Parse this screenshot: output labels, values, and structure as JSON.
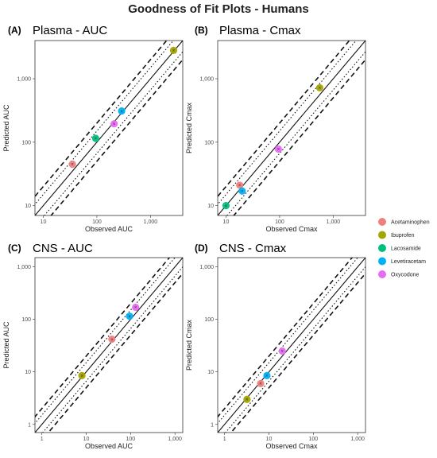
{
  "figure_title": "Goodness of Fit Plots - Humans",
  "colors": {
    "Acetaminophen": "#F08080",
    "Ibuprofen": "#A3A500",
    "Lacosamide": "#00BF7D",
    "Levetiracetam": "#00B0F6",
    "Oxycodone": "#E76BF3"
  },
  "legend": [
    "Acetaminophen",
    "Ibuprofen",
    "Lacosamide",
    "Levetiracetam",
    "Oxycodone"
  ],
  "chart_data": [
    {
      "type": "scatter",
      "letter": "(A)",
      "title": "Plasma - AUC",
      "xlabel": "Observed AUC",
      "ylabel": "Predicted AUC",
      "scale": "log10",
      "xlim": [
        7,
        4000
      ],
      "ylim": [
        7,
        4000
      ],
      "ticks": [
        10,
        100,
        1000
      ],
      "tick_labels": [
        "10",
        "100",
        "1,000"
      ],
      "reference_lines": [
        "unity",
        "1.5-fold",
        "2-fold"
      ],
      "points": [
        {
          "drug": "Acetaminophen",
          "x": 35,
          "y": 45
        },
        {
          "drug": "Lacosamide",
          "x": 95,
          "y": 115
        },
        {
          "drug": "Oxycodone",
          "x": 210,
          "y": 195
        },
        {
          "drug": "Levetiracetam",
          "x": 290,
          "y": 310
        },
        {
          "drug": "Ibuprofen",
          "x": 2700,
          "y": 2800
        }
      ]
    },
    {
      "type": "scatter",
      "letter": "(B)",
      "title": "Plasma - Cmax",
      "xlabel": "Observed Cmax",
      "ylabel": "Predicted Cmax",
      "scale": "log10",
      "xlim": [
        7,
        4000
      ],
      "ylim": [
        7,
        4000
      ],
      "ticks": [
        10,
        100,
        1000
      ],
      "tick_labels": [
        "10",
        "100",
        "1,000"
      ],
      "reference_lines": [
        "unity",
        "1.5-fold",
        "2-fold"
      ],
      "points": [
        {
          "drug": "Lacosamide",
          "x": 10,
          "y": 10
        },
        {
          "drug": "Acetaminophen",
          "x": 18,
          "y": 21
        },
        {
          "drug": "Levetiracetam",
          "x": 20,
          "y": 17
        },
        {
          "drug": "Oxycodone",
          "x": 95,
          "y": 78
        },
        {
          "drug": "Ibuprofen",
          "x": 560,
          "y": 720
        }
      ]
    },
    {
      "type": "scatter",
      "letter": "(C)",
      "title": "CNS - AUC",
      "xlabel": "Observed AUC",
      "ylabel": "Predicted AUC",
      "scale": "log10",
      "xlim": [
        0.7,
        1500
      ],
      "ylim": [
        0.7,
        1500
      ],
      "ticks": [
        1,
        10,
        100,
        1000
      ],
      "tick_labels": [
        "1",
        "10",
        "100",
        "1,000"
      ],
      "reference_lines": [
        "unity",
        "1.5-fold",
        "2-fold"
      ],
      "points": [
        {
          "drug": "Ibuprofen",
          "x": 8,
          "y": 8.5
        },
        {
          "drug": "Acetaminophen",
          "x": 38,
          "y": 42
        },
        {
          "drug": "Levetiracetam",
          "x": 95,
          "y": 115
        },
        {
          "drug": "Oxycodone",
          "x": 130,
          "y": 170
        }
      ]
    },
    {
      "type": "scatter",
      "letter": "(D)",
      "title": "CNS - Cmax",
      "xlabel": "Observed Cmax",
      "ylabel": "Predicted Cmax",
      "scale": "log10",
      "xlim": [
        0.7,
        1500
      ],
      "ylim": [
        0.7,
        1500
      ],
      "ticks": [
        1,
        10,
        100,
        1000
      ],
      "tick_labels": [
        "1",
        "10",
        "100",
        "1,000"
      ],
      "reference_lines": [
        "unity",
        "1.5-fold",
        "2-fold"
      ],
      "points": [
        {
          "drug": "Ibuprofen",
          "x": 3.2,
          "y": 3.0
        },
        {
          "drug": "Acetaminophen",
          "x": 6.5,
          "y": 6.0
        },
        {
          "drug": "Levetiracetam",
          "x": 9,
          "y": 8.5
        },
        {
          "drug": "Oxycodone",
          "x": 20,
          "y": 25
        }
      ]
    }
  ]
}
